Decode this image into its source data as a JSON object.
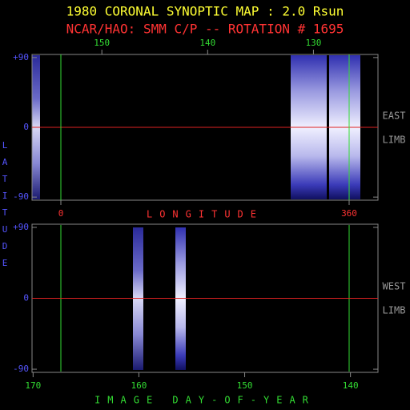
{
  "chart_data": [
    {
      "type": "image",
      "title": "1980 CORONAL SYNOPTIC MAP : 2.0 Rsun",
      "subtitle": "NCAR/HAO: SMM C/P -- ROTATION # 1695",
      "xlabel": "LONGITUDE",
      "ylabel": "LATITUDE",
      "annotations": [
        "EAST",
        "LIMB"
      ],
      "xlim": [
        -36,
        396
      ],
      "xticks": [
        0,
        360
      ],
      "x2lim": [
        156.6,
        123.9
      ],
      "x2ticks": [
        150,
        140,
        130
      ],
      "ylim": [
        -94,
        94
      ],
      "yticks": [
        {
          "value": 90,
          "label": "+90"
        },
        0,
        -90
      ],
      "zero_line": true
    },
    {
      "type": "image",
      "xlabel": "IMAGE DAY-OF-YEAR",
      "annotations": [
        "WEST",
        "LIMB"
      ],
      "xlim": [
        170.1,
        137.4
      ],
      "xticks": [
        170,
        160,
        150,
        140
      ],
      "ylim": [
        -94,
        94
      ],
      "yticks": [
        {
          "value": 90,
          "label": "+90"
        },
        0,
        -90
      ],
      "zero_line": true
    }
  ]
}
